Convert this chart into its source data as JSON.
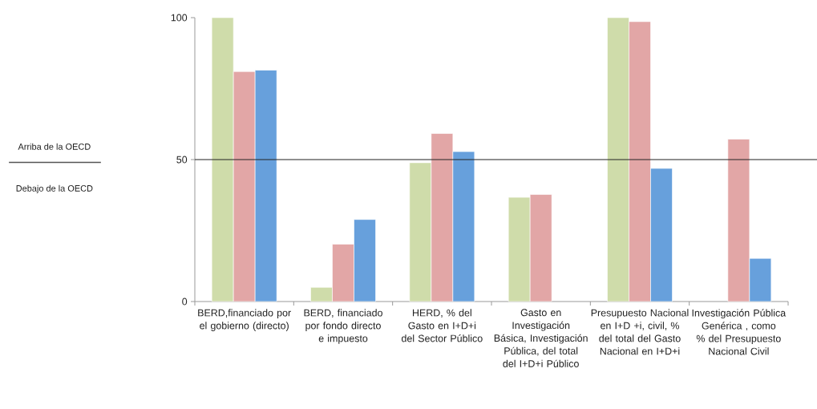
{
  "chart_data": {
    "type": "bar",
    "categories": [
      "BERD,financiado por el gobierno (directo)",
      "BERD, financiado por fondo directo e impuesto",
      "HERD, % del Gasto en I+D+i del Sector Público",
      "Gasto en Investigación Básica, Investigación Pública, del total del I+D+i Público",
      "Presupuesto Nacional en I+D +i, civil,  % del total del Gasto Nacional en I+D+i",
      "Investigación Pública Genérica , como % del Presupuesto Nacional Civil"
    ],
    "series": [
      {
        "color": "#cfdcaa",
        "values": [
          100,
          5.0,
          48.9,
          36.7,
          100,
          null
        ]
      },
      {
        "color": "#e2a6a6",
        "values": [
          81.0,
          20.2,
          59.2,
          37.7,
          98.6,
          57.2
        ]
      },
      {
        "color": "#67a0dc",
        "values": [
          81.5,
          28.9,
          52.8,
          null,
          46.9,
          15.2
        ]
      }
    ],
    "ylim": [
      0,
      100
    ],
    "yticks": [
      0,
      50,
      100
    ],
    "ref_lines": [
      {
        "axis": "y",
        "value": 50,
        "label": "Arriba de la OECD",
        "color": "#222222"
      }
    ],
    "annotations": [
      "Debajo de la OECD"
    ]
  }
}
